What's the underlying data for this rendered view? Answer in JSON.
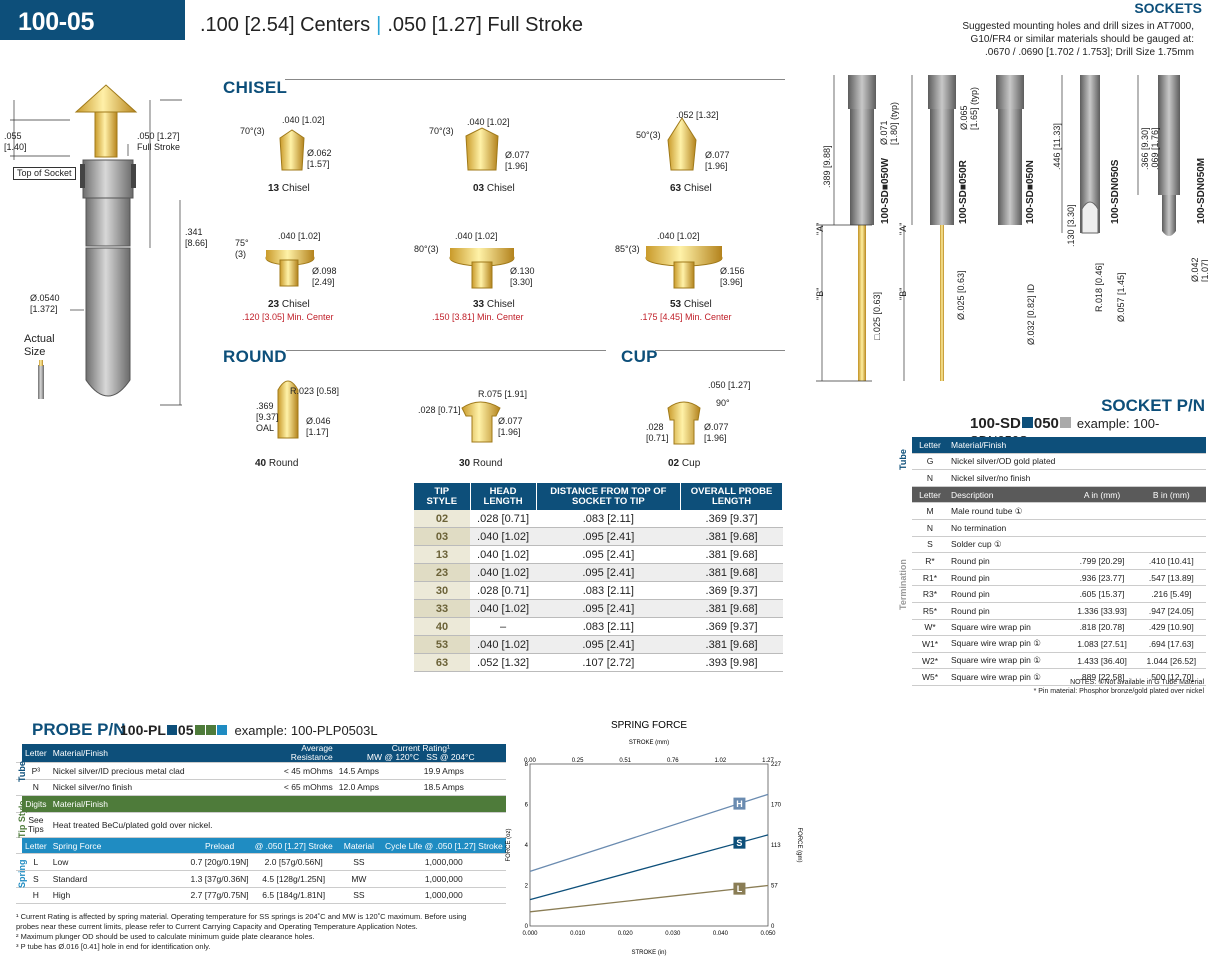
{
  "header": {
    "series": "100-05 SERIES",
    "centers": ".100 [2.54] Centers",
    "stroke": ".050 [1.27] Full Stroke"
  },
  "sockets_header": {
    "title": "SOCKETS",
    "note_line1": "Suggested mounting holes and drill sizes in AT7000,",
    "note_line2": "G10/FR4 or similar materials should be gauged at:",
    "note_line3": ".0670 / .0690 [1.702 / 1.753]; Drill Size 1.75mm"
  },
  "probe_drawing": {
    "dim_055": ".055\n[1.40]",
    "dim_stroke": ".050 [1.27]\nFull Stroke",
    "top_of_socket": "Top of Socket",
    "dim_341": ".341\n[8.66]",
    "dim_dia": "Ø.0540\n[1.372]",
    "actual_size": "Actual\nSize"
  },
  "sections": {
    "chisel": "CHISEL",
    "round": "ROUND",
    "cup": "CUP"
  },
  "tips": [
    {
      "num": "13",
      "name": "Chisel",
      "a": "70°(3)",
      "b": ".040 [1.02]",
      "c": "Ø.062\n[1.57]",
      "min": ""
    },
    {
      "num": "03",
      "name": "Chisel",
      "a": "70°(3)",
      "b": ".040 [1.02]",
      "c": "Ø.077\n[1.96]",
      "min": ""
    },
    {
      "num": "63",
      "name": "Chisel",
      "a": "50°(3)",
      "b": ".052 [1.32]",
      "c": "Ø.077\n[1.96]",
      "min": ""
    },
    {
      "num": "23",
      "name": "Chisel",
      "a": "75°\n(3)",
      "b": ".040 [1.02]",
      "c": "Ø.098\n[2.49]",
      "min": ".120 [3.05] Min. Center"
    },
    {
      "num": "33",
      "name": "Chisel",
      "a": "80°(3)",
      "b": ".040 [1.02]",
      "c": "Ø.130\n[3.30]",
      "min": ".150 [3.81] Min. Center"
    },
    {
      "num": "53",
      "name": "Chisel",
      "a": "85°(3)",
      "b": ".040 [1.02]",
      "c": "Ø.156\n[3.96]",
      "min": ".175 [4.45] Min. Center"
    },
    {
      "num": "40",
      "name": "Round",
      "a": ".369\n[9.37]\nOAL",
      "b": "R.023 [0.58]",
      "c": "Ø.046\n[1.17]",
      "min": ""
    },
    {
      "num": "30",
      "name": "Round",
      "a": ".028 [0.71]",
      "b": "R.075 [1.91]",
      "c": "Ø.077\n[1.96]",
      "min": ""
    },
    {
      "num": "02",
      "name": "Cup",
      "a": ".028\n[0.71]",
      "b": ".050 [1.27]",
      "c": "Ø.077\n[1.96]",
      "d": "90°",
      "min": ""
    }
  ],
  "tip_table": {
    "headers": [
      "TIP STYLE",
      "HEAD LENGTH",
      "DISTANCE FROM TOP OF SOCKET TO TIP",
      "OVERALL PROBE LENGTH"
    ],
    "rows": [
      [
        "02",
        ".028 [0.71]",
        ".083 [2.11]",
        ".369 [9.37]"
      ],
      [
        "03",
        ".040 [1.02]",
        ".095 [2.41]",
        ".381 [9.68]"
      ],
      [
        "13",
        ".040 [1.02]",
        ".095 [2.41]",
        ".381 [9.68]"
      ],
      [
        "23",
        ".040 [1.02]",
        ".095 [2.41]",
        ".381 [9.68]"
      ],
      [
        "30",
        ".028 [0.71]",
        ".083 [2.11]",
        ".369 [9.37]"
      ],
      [
        "33",
        ".040 [1.02]",
        ".095 [2.41]",
        ".381 [9.68]"
      ],
      [
        "40",
        "–",
        ".083 [2.11]",
        ".369 [9.37]"
      ],
      [
        "53",
        ".040 [1.02]",
        ".095 [2.41]",
        ".381 [9.68]"
      ],
      [
        "63",
        ".052 [1.32]",
        ".107 [2.72]",
        ".393 [9.98]"
      ]
    ]
  },
  "socket_drawing": {
    "dims": [
      ".389 [9.88]",
      "Ø.071\n[1.80] (typ)",
      "Ø.065\n[1.65] (typ)",
      ".446 [11.33]",
      ".366 [9.30]\n.069 [1.76]",
      "\"A\"",
      "\"B\"",
      "□.025 [0.63]",
      "Ø.025 [0.63]",
      "Ø.032 [0.82] ID",
      ".130 [3.30]",
      "R.018 [0.46]",
      "Ø.057 [1.45]",
      "Ø.042\n[1.07]"
    ],
    "parts": [
      "100-SD■050W",
      "100-SD■050R",
      "100-SD■050N",
      "100-SDN050S",
      "100-SDN050M"
    ]
  },
  "socket_pn": {
    "title": "SOCKET P/N",
    "code_prefix": "100-SD",
    "code_mid": "050",
    "example": "example: 100-SDN050S",
    "tube_label": "Tube",
    "term_label": "Termination",
    "tube_head": [
      "Letter",
      "Material/Finish"
    ],
    "tube_rows": [
      [
        "G",
        "Nickel silver/OD gold plated"
      ],
      [
        "N",
        "Nickel silver/no finish"
      ]
    ],
    "term_head": [
      "Letter",
      "Description",
      "A in (mm)",
      "B in (mm)"
    ],
    "term_rows": [
      [
        "M",
        "Male round tube ①",
        "",
        ""
      ],
      [
        "N",
        "No termination",
        "",
        ""
      ],
      [
        "S",
        "Solder cup ①",
        "",
        ""
      ],
      [
        "R*",
        "Round pin",
        ".799 [20.29]",
        ".410 [10.41]"
      ],
      [
        "R1*",
        "Round pin",
        ".936 [23.77]",
        ".547 [13.89]"
      ],
      [
        "R3*",
        "Round pin",
        ".605 [15.37]",
        ".216 [5.49]"
      ],
      [
        "R5*",
        "Round pin",
        "1.336 [33.93]",
        ".947 [24.05]"
      ],
      [
        "W*",
        "Square wire wrap pin",
        ".818 [20.78]",
        ".429 [10.90]"
      ],
      [
        "W1*",
        "Square wire wrap pin ①",
        "1.083 [27.51]",
        ".694 [17.63]"
      ],
      [
        "W2*",
        "Square wire wrap pin ①",
        "1.433 [36.40]",
        "1.044 [26.52]"
      ],
      [
        "W5*",
        "Square wire wrap pin ①",
        ".889 [22.58]",
        ".500 [12.70]"
      ]
    ],
    "note1": "NOTES: ①Not available in G Tube Material",
    "note2": "* Pin material: Phosphor bronze/gold plated over nickel"
  },
  "probe_pn": {
    "title": "PROBE P/N",
    "code_prefix": "100-PL",
    "code_mid": "05",
    "example": "example: 100-PLP0503L",
    "tube_label": "Tube",
    "tip_label": "Tip Style",
    "spring_label": "Spring",
    "tube_head": [
      "Letter",
      "Material/Finish",
      "Average\nResistance",
      "Current Rating¹",
      "MW @ 120°C",
      "SS @ 204°C"
    ],
    "tube_rows": [
      [
        "P³",
        "Nickel silver/ID precious metal clad",
        "< 45 mOhms",
        "14.5 Amps",
        "19.9 Amps"
      ],
      [
        "N",
        "Nickel silver/no finish",
        "< 65 mOhms",
        "12.0 Amps",
        "18.5 Amps"
      ]
    ],
    "tip_head": [
      "Digits",
      "Material/Finish"
    ],
    "tip_rows": [
      [
        "See\nTips",
        "Heat treated BeCu/plated gold over nickel."
      ]
    ],
    "spring_head": [
      "Letter",
      "Spring Force",
      "Preload",
      "@ .050 [1.27] Stroke",
      "Material",
      "Cycle Life @ .050 [1.27] Stroke"
    ],
    "spring_rows": [
      [
        "L",
        "Low",
        "0.7 [20g/0.19N]",
        "2.0 [57g/0.56N]",
        "SS",
        "1,000,000"
      ],
      [
        "S",
        "Standard",
        "1.3 [37g/0.36N]",
        "4.5 [128g/1.25N]",
        "MW",
        "1,000,000"
      ],
      [
        "H",
        "High",
        "2.7 [77g/0.75N]",
        "6.5 [184g/1.81N]",
        "SS",
        "1,000,000"
      ]
    ],
    "footnote1": "¹ Current Rating is affected by spring material. Operating temperature for SS springs is 204˚C and MW is 120˚C maximum. Before using",
    "footnote1b": "probes near these current limits, please refer to Current Carrying Capacity and Operating Temperature Application Notes.",
    "footnote2": "² Maximum plunger OD should be used to calculate minimum guide plate clearance holes.",
    "footnote3": "³ P tube has Ø.016 [0.41] hole in end for identification only."
  },
  "chart_data": {
    "type": "line",
    "title": "SPRING FORCE",
    "xlabel": "STROKE (in)",
    "x2label": "STROKE (mm)",
    "ylabel": "FORCE (oz)",
    "y2label": "FORCE (gm)",
    "x_ticks": [
      "0.000",
      "0.010",
      "0.020",
      "0.030",
      "0.040",
      "0.050"
    ],
    "x2_ticks": [
      "0.00",
      "0.25",
      "0.51",
      "0.76",
      "1.02",
      "1.27"
    ],
    "y_ticks": [
      "0",
      "2",
      "4",
      "6",
      "8"
    ],
    "y2_ticks": [
      "0",
      "57",
      "113",
      "170",
      "227"
    ],
    "xlim": [
      0,
      0.05
    ],
    "ylim": [
      0,
      8
    ],
    "series": [
      {
        "name": "H",
        "color": "#6a8bb0",
        "x": [
          0,
          0.05
        ],
        "y": [
          2.7,
          6.5
        ]
      },
      {
        "name": "S",
        "color": "#0d4f7a",
        "x": [
          0,
          0.05
        ],
        "y": [
          1.3,
          4.5
        ]
      },
      {
        "name": "L",
        "color": "#8a7d55",
        "x": [
          0,
          0.05
        ],
        "y": [
          0.7,
          2.0
        ]
      }
    ],
    "grid": false
  }
}
